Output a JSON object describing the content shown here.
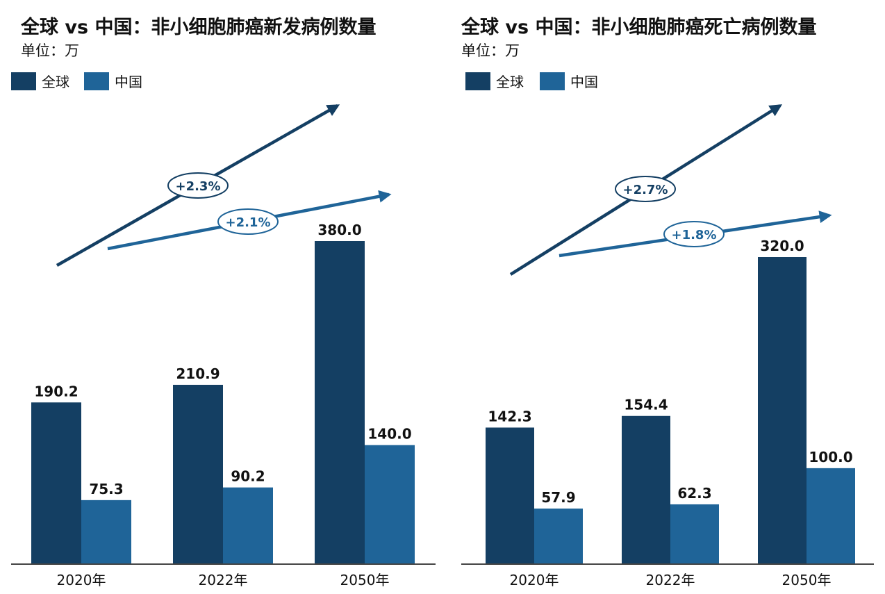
{
  "colors": {
    "global": "#143f63",
    "china": "#1f6498",
    "axis": "#444444",
    "text": "#111111"
  },
  "chart_data": [
    {
      "type": "bar",
      "title": "全球 vs 中国：非小细胞肺癌新发病例数量",
      "subtitle": "单位：万",
      "categories": [
        "2020年",
        "2022年",
        "2050年"
      ],
      "series": [
        {
          "name": "全球",
          "values": [
            190.2,
            210.9,
            380.0
          ]
        },
        {
          "name": "中国",
          "values": [
            75.3,
            90.2,
            140.0
          ]
        }
      ],
      "value_labels": {
        "全球": [
          "190.2",
          "210.9",
          "380.0"
        ],
        "中国": [
          "75.3",
          "90.2",
          "140.0"
        ]
      },
      "annotations": [
        "+2.3%",
        "+2.1%"
      ],
      "legend": "top-left",
      "grid": false
    },
    {
      "type": "bar",
      "title": "全球 vs 中国：非小细胞肺癌死亡病例数量",
      "subtitle": "单位：万",
      "categories": [
        "2020年",
        "2022年",
        "2050年"
      ],
      "series": [
        {
          "name": "全球",
          "values": [
            142.3,
            154.4,
            320.0
          ]
        },
        {
          "name": "中国",
          "values": [
            57.9,
            62.3,
            100.0
          ]
        }
      ],
      "value_labels": {
        "全球": [
          "142.3",
          "154.4",
          "320.0"
        ],
        "中国": [
          "57.9",
          "62.3",
          "100.0"
        ]
      },
      "annotations": [
        "+2.7%",
        "+1.8%"
      ],
      "legend": "top-left",
      "grid": false
    }
  ]
}
